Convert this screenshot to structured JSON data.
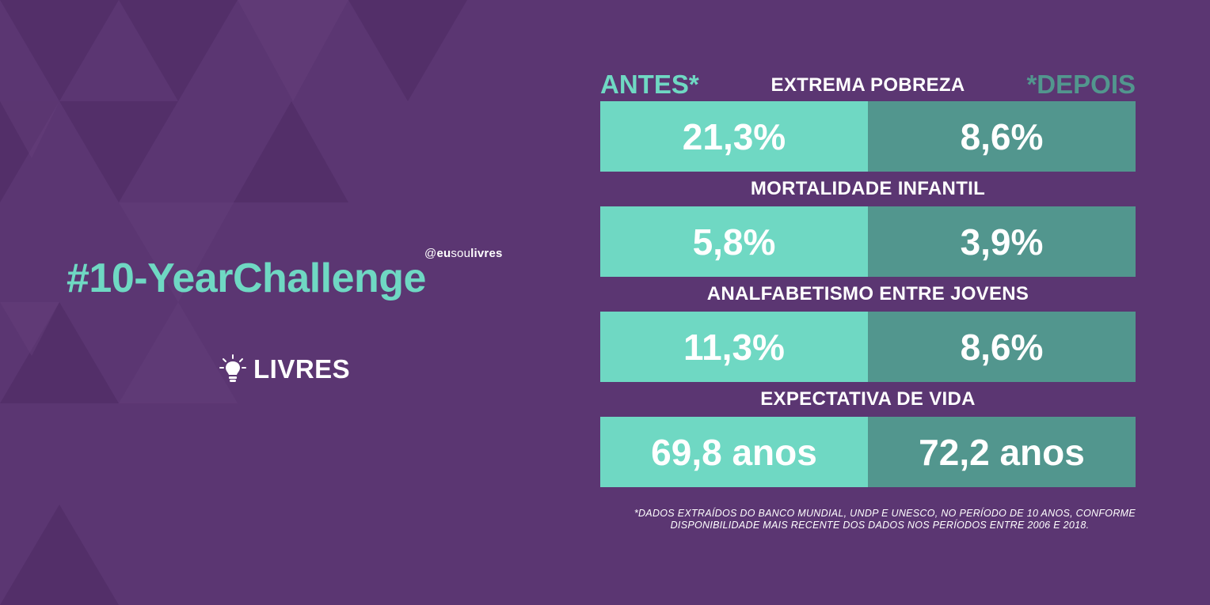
{
  "handle": {
    "prefix": "@",
    "bold_part": "eu",
    "middle": "sou",
    "suffix": "livres"
  },
  "hashtag": "#10-YearChallenge",
  "brand": {
    "name": "LIVRES",
    "icon": "lightbulb-icon"
  },
  "table": {
    "before_label": "ANTES*",
    "after_label": "*DEPOIS",
    "rows": [
      {
        "label": "EXTREMA POBREZA",
        "before": "21,3%",
        "after": "8,6%"
      },
      {
        "label": "MORTALIDADE INFANTIL",
        "before": "5,8%",
        "after": "3,9%"
      },
      {
        "label": "ANALFABETISMO ENTRE JOVENS",
        "before": "11,3%",
        "after": "8,6%"
      },
      {
        "label": "EXPECTATIVA DE VIDA",
        "before": "69,8 anos",
        "after": "72,2 anos"
      }
    ]
  },
  "footnote": {
    "line1": "*DADOS EXTRAÍDOS DO BANCO MUNDIAL, UNDP E UNESCO, NO PERÍODO DE 10 ANOS, CONFORME",
    "line2": "DISPONIBILIDADE MAIS RECENTE DOS DADOS NOS PERÍODOS ENTRE 2006 E 2018."
  },
  "colors": {
    "background": "#5b3672",
    "before": "#6fd8c3",
    "after": "#52968e",
    "accent": "#6fd8c3"
  }
}
